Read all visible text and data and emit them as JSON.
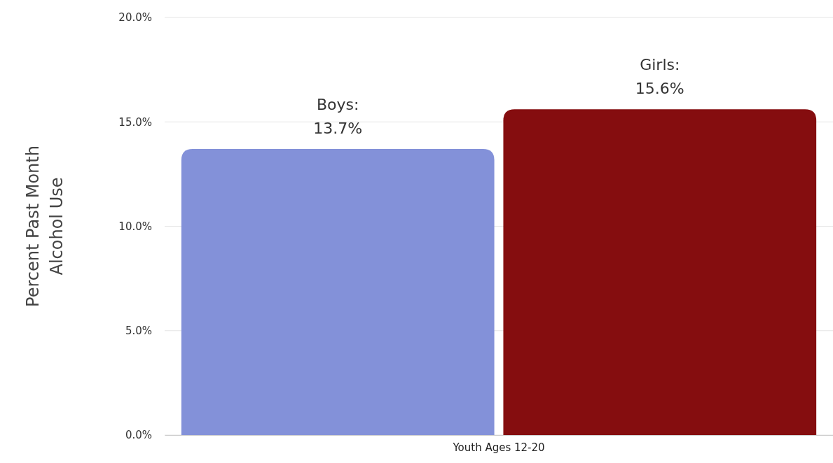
{
  "chart_data": {
    "type": "bar",
    "ylabel": "Percent Past Month Alcohol Use",
    "categories": [
      "Youth Ages 12-20"
    ],
    "series": [
      {
        "name": "Boys:",
        "color": "#8391d9",
        "values": [
          13.7
        ],
        "value_labels": [
          "13.7%"
        ]
      },
      {
        "name": "Girls:",
        "color": "#850d0f",
        "values": [
          15.6
        ],
        "value_labels": [
          "15.6%"
        ]
      }
    ],
    "ylim": [
      0,
      20
    ],
    "yticks": [
      {
        "value": 0,
        "label": "0.0%"
      },
      {
        "value": 5,
        "label": "5.0%"
      },
      {
        "value": 10,
        "label": "10.0%"
      },
      {
        "value": 15,
        "label": "15.0%"
      },
      {
        "value": 20,
        "label": "20.0%"
      }
    ],
    "grid": "y"
  }
}
